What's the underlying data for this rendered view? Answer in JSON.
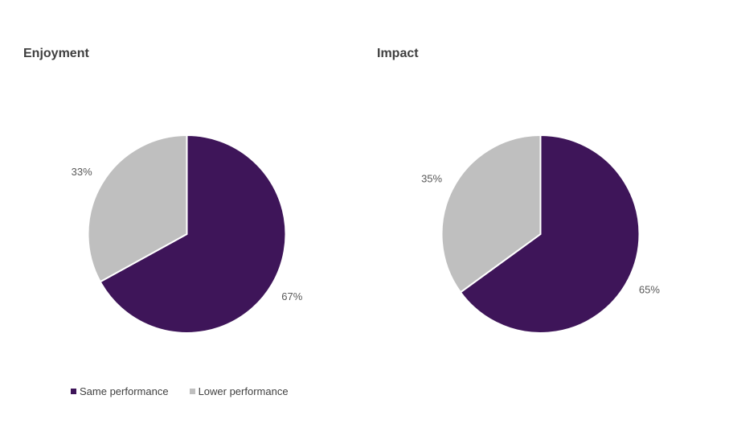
{
  "chart_data": [
    {
      "type": "pie",
      "title": "Enjoyment",
      "labels": [
        "Same performance",
        "Lower performance"
      ],
      "values": [
        67,
        33
      ],
      "value_labels": [
        "67%",
        "33%"
      ],
      "colors": [
        "#3E1559",
        "#BFBFBF"
      ],
      "start_angle_deg": 0,
      "direction": "clockwise",
      "legend_position": "none"
    },
    {
      "type": "pie",
      "title": "Impact",
      "labels": [
        "Same performance",
        "Lower performance"
      ],
      "values": [
        65,
        35
      ],
      "value_labels": [
        "65%",
        "35%"
      ],
      "colors": [
        "#3E1559",
        "#BFBFBF"
      ],
      "start_angle_deg": 0,
      "direction": "clockwise",
      "legend_position": "none"
    }
  ],
  "legend": {
    "items": [
      {
        "label": "Same performance",
        "color": "#3E1559"
      },
      {
        "label": "Lower performance",
        "color": "#BFBFBF"
      }
    ]
  },
  "styles": {
    "label_color": "#595959",
    "title_color": "#3f3f3f",
    "background": "#ffffff",
    "slice_separator": "#ffffff"
  }
}
